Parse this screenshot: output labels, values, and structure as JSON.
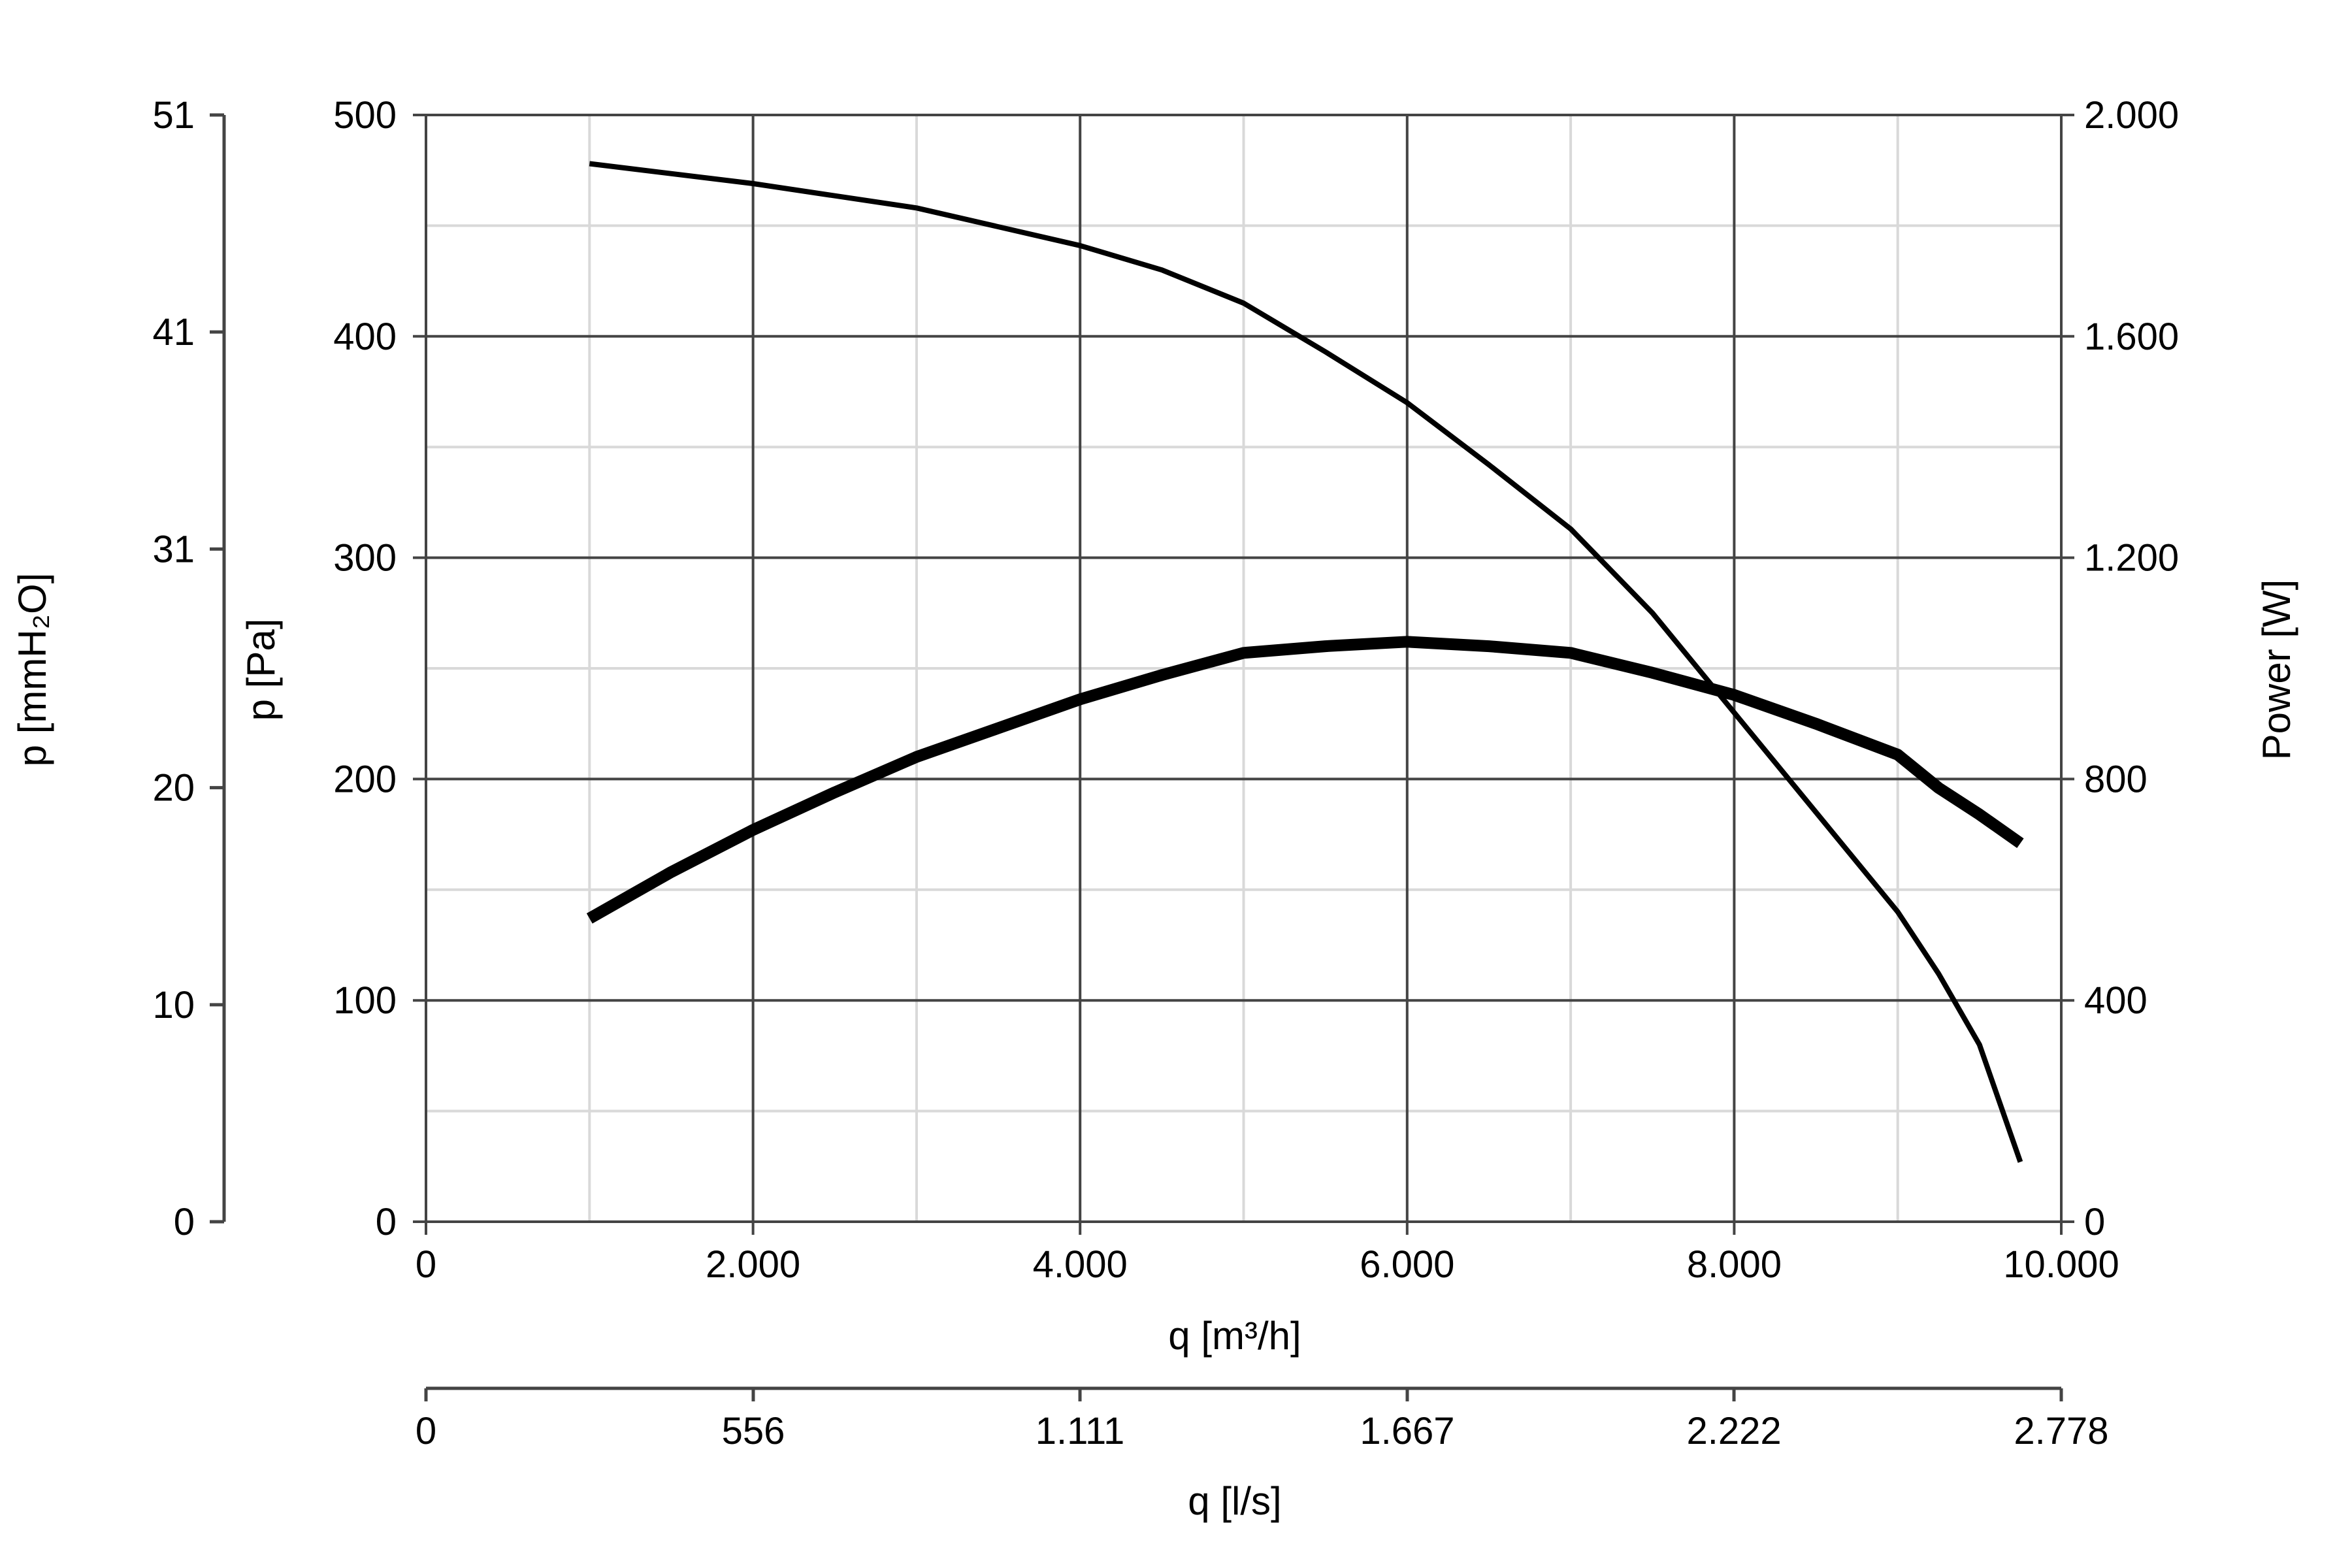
{
  "chart_data": {
    "type": "line",
    "title": "",
    "x_axis": {
      "label": "q [m³/h]",
      "range": [
        0,
        10000
      ],
      "ticks": [
        0,
        2000,
        4000,
        6000,
        8000,
        10000
      ],
      "tick_labels": [
        "0",
        "2.000",
        "4.000",
        "6.000",
        "8.000",
        "10.000"
      ],
      "minor_gridlines": [
        1000,
        3000,
        5000,
        7000,
        9000
      ]
    },
    "x_axis_secondary": {
      "label": "q [l/s]",
      "range": [
        0,
        2778
      ],
      "ticks": [
        0,
        556,
        1111,
        1667,
        2222,
        2778
      ],
      "tick_labels": [
        "0",
        "556",
        "1.111",
        "1.667",
        "2.222",
        "2.778"
      ]
    },
    "y_axis_left": {
      "label": "p [Pa]",
      "range": [
        0,
        500
      ],
      "ticks": [
        0,
        100,
        200,
        300,
        400,
        500
      ],
      "tick_labels": [
        "0",
        "100",
        "200",
        "300",
        "400",
        "500"
      ],
      "minor_gridlines": [
        50,
        150,
        250,
        350,
        450
      ]
    },
    "y_axis_left_outer": {
      "label": "p [mmH₂O]",
      "range": [
        0,
        51
      ],
      "ticks": [
        0,
        10,
        20,
        31,
        41,
        51
      ],
      "tick_labels": [
        "0",
        "10",
        "20",
        "31",
        "41",
        "51"
      ]
    },
    "y_axis_right": {
      "label": "Power [W]",
      "range": [
        0,
        2000
      ],
      "ticks": [
        0,
        400,
        800,
        1200,
        1600,
        2000
      ],
      "tick_labels": [
        "0",
        "400",
        "800",
        "1.200",
        "1.600",
        "2.000"
      ]
    },
    "grid": true,
    "series": [
      {
        "axis": "left",
        "line_weight": "thin",
        "color": "#000000",
        "x": [
          1000,
          2000,
          3000,
          4000,
          4500,
          5000,
          5500,
          6000,
          6500,
          7000,
          7500,
          8000,
          8500,
          9000,
          9250,
          9500,
          9750
        ],
        "y": [
          478,
          469,
          458,
          441,
          430,
          415,
          393,
          370,
          342,
          313,
          275,
          230,
          185,
          140,
          112,
          80,
          27
        ]
      },
      {
        "axis": "right",
        "line_weight": "thick",
        "color": "#000000",
        "x": [
          1000,
          1500,
          2000,
          2500,
          3000,
          3500,
          4000,
          4500,
          5000,
          5500,
          6000,
          6500,
          7000,
          7500,
          8000,
          8500,
          9000,
          9250,
          9500,
          9750
        ],
        "y": [
          548,
          632,
          708,
          776,
          840,
          892,
          944,
          988,
          1028,
          1040,
          1048,
          1040,
          1028,
          992,
          952,
          900,
          844,
          784,
          736,
          684
        ]
      }
    ]
  }
}
